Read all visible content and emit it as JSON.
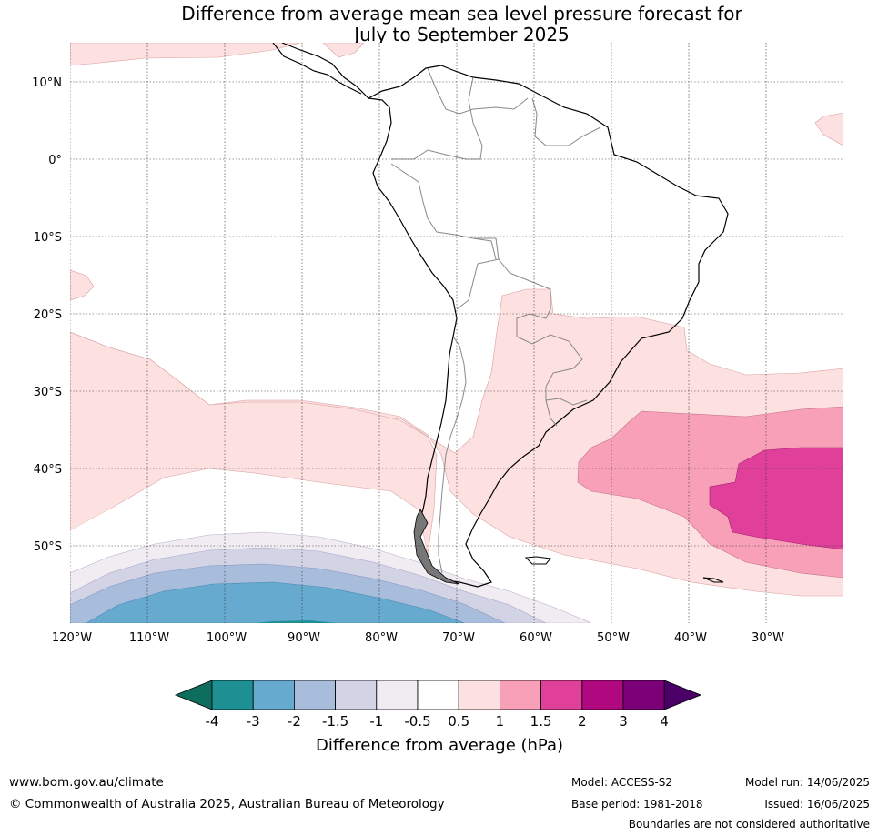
{
  "title": {
    "line1": "Difference from average mean sea level pressure forecast for",
    "line2": "July to September 2025"
  },
  "map": {
    "lat_labels": [
      "10°N",
      "0°",
      "10°S",
      "20°S",
      "30°S",
      "40°S",
      "50°S"
    ],
    "lon_labels": [
      "120°W",
      "110°W",
      "100°W",
      "90°W",
      "80°W",
      "70°W",
      "60°W",
      "50°W",
      "40°W",
      "30°W"
    ]
  },
  "colorbar": {
    "ticks": [
      "-4",
      "-3",
      "-2",
      "-1.5",
      "-1",
      "-0.5",
      "0.5",
      "1",
      "1.5",
      "2",
      "3",
      "4"
    ],
    "colors": [
      "#0e6e5e",
      "#1e9094",
      "#66aad0",
      "#a8bcdc",
      "#d3d3e6",
      "#f0ecf2",
      "#ffffff",
      "#fde0e0",
      "#f7a0b8",
      "#e0409a",
      "#b0087e",
      "#7c0078",
      "#4a0066"
    ],
    "label": "Difference from average (hPa)"
  },
  "footer": {
    "url": "www.bom.gov.au/climate",
    "copyright": "© Commonwealth of Australia 2025, Australian Bureau of Meteorology",
    "model": "Model: ACCESS-S2",
    "base_period": "Base period: 1981-2018",
    "model_run": "Model run: 14/06/2025",
    "issued": "Issued: 16/06/2025",
    "disclaimer": "Boundaries are not considered authoritative"
  }
}
